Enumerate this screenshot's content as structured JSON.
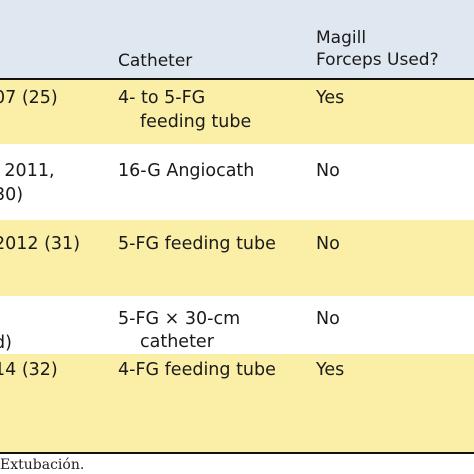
{
  "header": {
    "col1": "",
    "col2": "Catheter",
    "col3_line1": "Magill",
    "col3_line2": "Forceps Used?"
  },
  "rows": [
    {
      "col1_line1": "07 (25)",
      "col1_line2": "",
      "col2_line1": "4- to 5-FG",
      "col2_line2": "feeding tube",
      "col3": "Yes"
    },
    {
      "col1_line1": "l 2011,",
      "col1_line2": "30)",
      "col2_line1": "16-G Angiocath",
      "col2_line2": "",
      "col3": "No"
    },
    {
      "col1_line1": "2012 (31)",
      "col1_line2": "",
      "col2_line1": "5-FG feeding tube",
      "col2_line2": "",
      "col3": "No"
    },
    {
      "col1_line1": "",
      "col1_line2": "d)",
      "col2_line1": "5-FG × 30-cm",
      "col2_line2": "catheter",
      "col3": "No"
    },
    {
      "col1_line1": "14 (32)",
      "col1_line2": "",
      "col2_line1": "4-FG feeding tube",
      "col2_line2": "",
      "col3": "Yes"
    }
  ],
  "footnote": "Extubación.",
  "colors": {
    "header_bg": "#dfe7f0",
    "row_alt_bg": "#fbefa8",
    "rule": "#111111"
  }
}
